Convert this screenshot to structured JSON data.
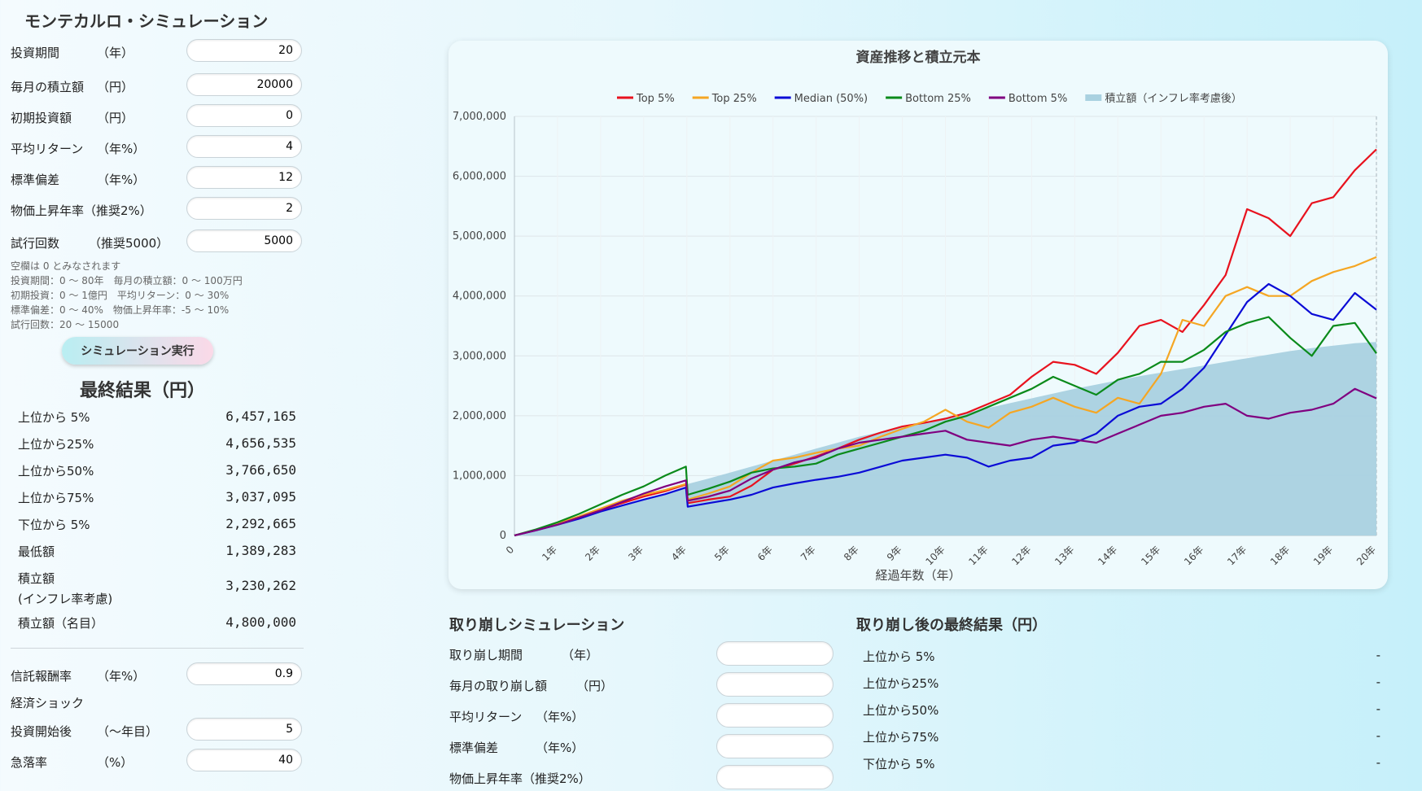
{
  "app_title": "モンテカルロ・シミュレーション",
  "inputs": [
    {
      "label": "投資期間",
      "unit": "（年）",
      "value": "20"
    },
    {
      "label": "毎月の積立額",
      "unit": "（円）",
      "value": "20000"
    },
    {
      "label": "初期投資額",
      "unit": "（円）",
      "value": "0"
    },
    {
      "label": "平均リターン",
      "unit": "（年%）",
      "value": "4"
    },
    {
      "label": "標準偏差",
      "unit": "（年%）",
      "value": "12"
    },
    {
      "label": "物価上昇年率（推奨2%）",
      "unit": "",
      "value": "2"
    },
    {
      "label": "試行回数",
      "unit": "（推奨5000）",
      "value": "5000"
    }
  ],
  "notes": [
    "空欄は 0 とみなされます",
    "投資期間：0 〜 80年　毎月の積立額：0 〜 100万円",
    "初期投資：0 〜 1億円　平均リターン：0 〜 30%",
    "標準偏差：0 〜 40%　物価上昇年率：-5 〜 10%",
    "試行回数：20 〜 15000"
  ],
  "run_button": "シミュレーション実行",
  "results_title": "最終結果（円）",
  "results": [
    {
      "label": "上位から 5%",
      "value": "6,457,165"
    },
    {
      "label": "上位から25%",
      "value": "4,656,535"
    },
    {
      "label": "上位から50%",
      "value": "3,766,650"
    },
    {
      "label": "上位から75%",
      "value": "3,037,095"
    },
    {
      "label": "下位から 5%",
      "value": "2,292,665"
    },
    {
      "label": "最低額",
      "value": "1,389,283"
    },
    {
      "label": "積立額",
      "label2": "(インフレ率考慮)",
      "value": "3,230,262"
    },
    {
      "label": "積立額（名目）",
      "value": "4,800,000"
    }
  ],
  "fee": {
    "label": "信託報酬率",
    "unit": "（年%）",
    "value": "0.9"
  },
  "shock_title": "経済ショック",
  "shock": [
    {
      "label": "投資開始後",
      "unit": "（〜年目）",
      "value": "5"
    },
    {
      "label": "急落率",
      "unit": "（%）",
      "value": "40"
    }
  ],
  "withdraw": {
    "title": "取り崩しシミュレーション",
    "rows": [
      {
        "label": "取り崩し期間",
        "unit": "（年）",
        "value": ""
      },
      {
        "label": "毎月の取り崩し額",
        "unit": "（円）",
        "value": ""
      },
      {
        "label": "平均リターン",
        "unit": "（年%）",
        "value": ""
      },
      {
        "label": "標準偏差",
        "unit": "（年%）",
        "value": ""
      },
      {
        "label": "物価上昇年率（推奨2%）",
        "unit": "",
        "value": ""
      }
    ]
  },
  "withdraw_results": {
    "title": "取り崩し後の最終結果（円）",
    "rows": [
      {
        "label": "上位から 5%",
        "value": "-"
      },
      {
        "label": "上位から25%",
        "value": "-"
      },
      {
        "label": "上位から50%",
        "value": "-"
      },
      {
        "label": "上位から75%",
        "value": "-"
      },
      {
        "label": "下位から 5%",
        "value": "-"
      }
    ]
  },
  "chart_data": {
    "type": "line",
    "title": "資産推移と積立元本",
    "xlabel": "経過年数（年）",
    "ylabel": "",
    "ylim": [
      0,
      7000000
    ],
    "y_ticks": [
      "0",
      "1,000,000",
      "2,000,000",
      "3,000,000",
      "4,000,000",
      "5,000,000",
      "6,000,000",
      "7,000,000"
    ],
    "x_ticks": [
      "0",
      "1年",
      "2年",
      "3年",
      "4年",
      "5年",
      "6年",
      "7年",
      "8年",
      "9年",
      "10年",
      "11年",
      "12年",
      "13年",
      "14年",
      "15年",
      "16年",
      "17年",
      "18年",
      "19年",
      "20年"
    ],
    "x": [
      0,
      0.5,
      1,
      1.5,
      2,
      2.5,
      3,
      3.5,
      3.98,
      4.02,
      4.5,
      5,
      5.5,
      6,
      6.5,
      7,
      7.5,
      8,
      8.5,
      9,
      9.5,
      10,
      10.5,
      11,
      11.5,
      12,
      12.5,
      13,
      13.5,
      14,
      14.5,
      15,
      15.5,
      16,
      16.5,
      17,
      17.5,
      18,
      18.5,
      19,
      19.5,
      20
    ],
    "grid": true,
    "legend_position": "top",
    "series": [
      {
        "name": "Top 5%",
        "color": "#e8121e",
        "values": [
          0,
          90000,
          190000,
          300000,
          420000,
          540000,
          650000,
          740000,
          850000,
          540000,
          600000,
          650000,
          830000,
          1100000,
          1200000,
          1320000,
          1450000,
          1600000,
          1720000,
          1820000,
          1880000,
          1950000,
          2050000,
          2200000,
          2350000,
          2650000,
          2900000,
          2850000,
          2700000,
          3050000,
          3500000,
          3600000,
          3400000,
          3850000,
          4350000,
          5450000,
          5300000,
          5000000,
          5550000,
          5650000,
          6100000,
          6450000
        ]
      },
      {
        "name": "Top 25%",
        "color": "#f5a623",
        "values": [
          0,
          95000,
          200000,
          320000,
          450000,
          580000,
          680000,
          760000,
          860000,
          600000,
          700000,
          820000,
          1050000,
          1250000,
          1300000,
          1380000,
          1450000,
          1500000,
          1650000,
          1780000,
          1900000,
          2100000,
          1900000,
          1800000,
          2050000,
          2150000,
          2300000,
          2150000,
          2050000,
          2300000,
          2200000,
          2700000,
          3600000,
          3500000,
          4000000,
          4150000,
          4000000,
          4000000,
          4250000,
          4400000,
          4500000,
          4650000
        ]
      },
      {
        "name": "Median (50%)",
        "color": "#0b0bd6",
        "values": [
          0,
          85000,
          180000,
          280000,
          400000,
          500000,
          600000,
          690000,
          800000,
          480000,
          540000,
          600000,
          680000,
          800000,
          870000,
          930000,
          980000,
          1050000,
          1150000,
          1250000,
          1300000,
          1350000,
          1300000,
          1150000,
          1250000,
          1300000,
          1500000,
          1550000,
          1700000,
          2000000,
          2150000,
          2200000,
          2450000,
          2800000,
          3350000,
          3900000,
          4200000,
          4000000,
          3700000,
          3600000,
          4050000,
          3770000
        ]
      },
      {
        "name": "Bottom 25%",
        "color": "#0a8a1a",
        "values": [
          0,
          100000,
          220000,
          360000,
          520000,
          680000,
          820000,
          1000000,
          1150000,
          680000,
          780000,
          900000,
          1050000,
          1120000,
          1150000,
          1200000,
          1350000,
          1450000,
          1550000,
          1650000,
          1750000,
          1900000,
          2000000,
          2150000,
          2300000,
          2450000,
          2650000,
          2500000,
          2350000,
          2600000,
          2700000,
          2900000,
          2900000,
          3100000,
          3400000,
          3550000,
          3650000,
          3300000,
          3000000,
          3500000,
          3550000,
          3040000
        ]
      },
      {
        "name": "Bottom 5%",
        "color": "#800080",
        "values": [
          0,
          85000,
          180000,
          300000,
          420000,
          560000,
          700000,
          820000,
          920000,
          580000,
          650000,
          750000,
          950000,
          1100000,
          1220000,
          1300000,
          1450000,
          1550000,
          1600000,
          1650000,
          1700000,
          1750000,
          1600000,
          1550000,
          1500000,
          1600000,
          1650000,
          1600000,
          1550000,
          1700000,
          1850000,
          2000000,
          2050000,
          2150000,
          2200000,
          2000000,
          1950000,
          2050000,
          2100000,
          2200000,
          2450000,
          2290000
        ]
      },
      {
        "name": "積立額（インフレ率考慮後）",
        "color": "#a9d1e0",
        "type": "area",
        "values": [
          0,
          100000,
          200000,
          300000,
          400000,
          500000,
          600000,
          700000,
          800000,
          860000,
          950000,
          1050000,
          1150000,
          1250000,
          1350000,
          1450000,
          1550000,
          1650000,
          1730000,
          1810000,
          1890000,
          1970000,
          2050000,
          2130000,
          2210000,
          2290000,
          2370000,
          2450000,
          2520000,
          2590000,
          2660000,
          2720000,
          2780000,
          2840000,
          2900000,
          2960000,
          3020000,
          3080000,
          3130000,
          3170000,
          3210000,
          3230262
        ]
      }
    ]
  }
}
